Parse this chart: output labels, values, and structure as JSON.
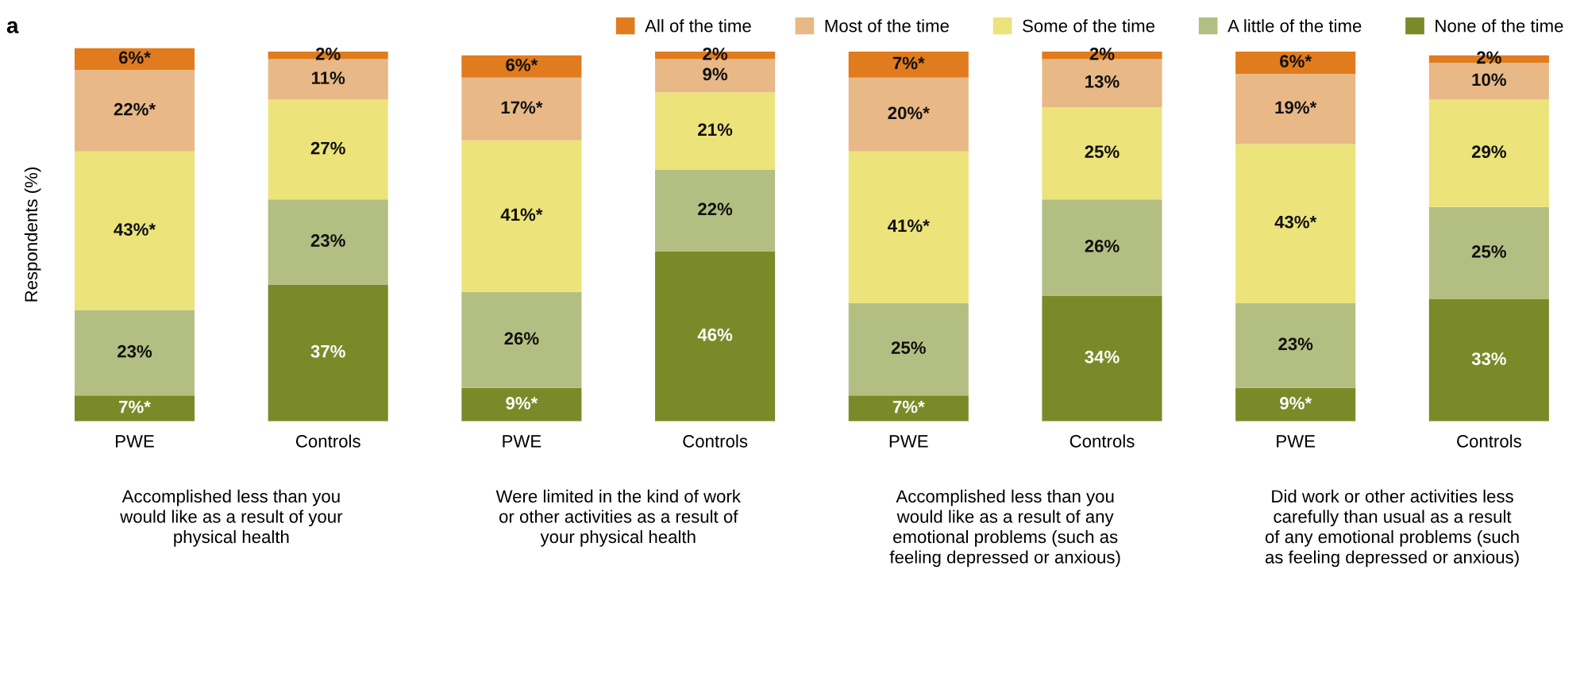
{
  "chart_data": {
    "type": "bar",
    "title": "a",
    "ylabel": "Respondents (%)",
    "stacked": true,
    "legend": "top right",
    "grid": false,
    "tick_labels": "x",
    "categories": [
      "PWE",
      "Controls",
      "PWE",
      "Controls",
      "PWE",
      "Controls",
      "PWE",
      "Controls"
    ],
    "series": [
      {
        "name": "None of the time",
        "color": "#7a8a28",
        "values": [
          7,
          37,
          9,
          46,
          7,
          34,
          9,
          33
        ],
        "value_labels": [
          "7%*",
          "37%",
          "9%*",
          "46%",
          "7%*",
          "34%",
          "9%*",
          "33%"
        ]
      },
      {
        "name": "A little of the time",
        "color": "#b3bf82",
        "values": [
          23,
          23,
          26,
          22,
          25,
          26,
          23,
          25
        ],
        "value_labels": [
          "23%",
          "23%",
          "26%",
          "22%",
          "25%",
          "26%",
          "23%",
          "25%"
        ]
      },
      {
        "name": "Some of the time",
        "color": "#ece37a",
        "values": [
          43,
          27,
          41,
          21,
          41,
          25,
          43,
          29
        ],
        "value_labels": [
          "43%*",
          "27%",
          "41%*",
          "21%",
          "41%*",
          "25%",
          "43%*",
          "29%"
        ]
      },
      {
        "name": "Most of the time",
        "color": "#e8b886",
        "values": [
          22,
          11,
          17,
          9,
          20,
          13,
          19,
          10
        ],
        "value_labels": [
          "22%*",
          "11%",
          "17%*",
          "9%",
          "20%*",
          "13%",
          "19%*",
          "10%"
        ]
      },
      {
        "name": "All of the time",
        "color": "#e07b1e",
        "values": [
          6,
          2,
          6,
          2,
          7,
          2,
          6,
          2
        ],
        "value_labels": [
          "6%*",
          "2%",
          "6%*",
          "2%",
          "7%*",
          "2%",
          "6%*",
          "2%"
        ]
      }
    ],
    "annotations": [
      "Accomplished less than you\nwould like as a result of your\nphysical health",
      "Were limited in the kind of work\nor other activities as a result of\nyour physical health",
      "Accomplished less than you\nwould like as a result of any\nemotional problems (such as\nfeeling depressed or anxious)",
      "Did work or other activities less\ncarefully than usual as a result\nof any emotional problems (such\nas feeling depressed or anxious)"
    ]
  }
}
